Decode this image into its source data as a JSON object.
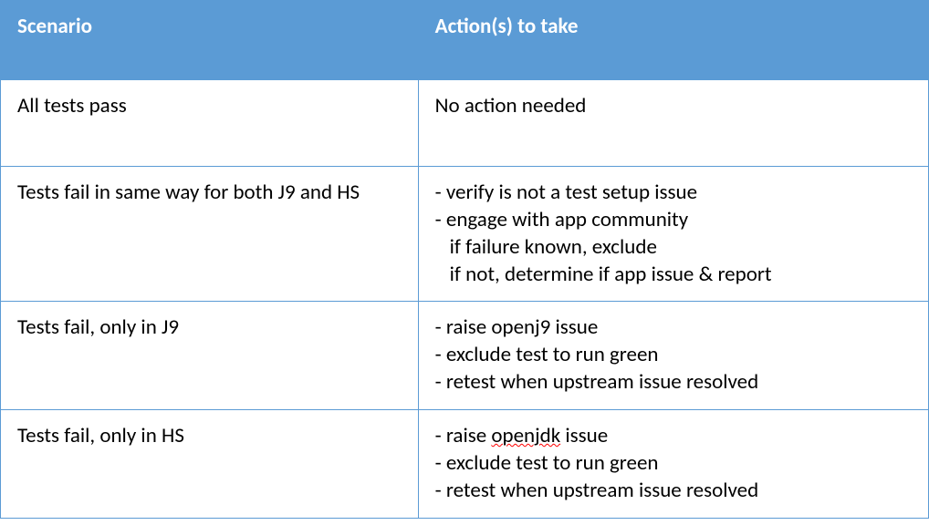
{
  "table": {
    "header_bg": "#5b9bd5",
    "header_fg": "#ffffff",
    "border_color": "#5b9bd5",
    "cell_bg": "#ffffff",
    "cell_fg": "#000000",
    "font_family": "Calibri, Arial, sans-serif",
    "header_fontsize": 23,
    "cell_fontsize": 23,
    "columns": [
      {
        "key": "scenario",
        "label": "Scenario",
        "width_pct": 45
      },
      {
        "key": "action",
        "label": "Action(s) to take",
        "width_pct": 55
      }
    ],
    "rows": [
      {
        "scenario": "All tests pass",
        "action_lines": [
          {
            "text": "No action needed",
            "indent": false
          }
        ],
        "tall": true
      },
      {
        "scenario": "Tests fail in same way for both J9 and HS",
        "action_lines": [
          {
            "text": "- verify is not a test setup issue",
            "indent": false
          },
          {
            "text": "- engage with app community",
            "indent": false
          },
          {
            "text": "if failure known, exclude",
            "indent": true
          },
          {
            "text": "if not, determine if app issue & report",
            "indent": true
          }
        ],
        "tall": false
      },
      {
        "scenario": "Tests fail, only in J9",
        "action_lines": [
          {
            "text": "- raise openj9 issue",
            "indent": false
          },
          {
            "text": "- exclude test to run green",
            "indent": false
          },
          {
            "text": "- retest when upstream issue resolved",
            "indent": false
          }
        ],
        "tall": false
      },
      {
        "scenario": "Tests fail, only in HS",
        "action_lines": [
          {
            "text_parts": [
              {
                "t": "- raise ",
                "err": false
              },
              {
                "t": "openjdk",
                "err": true
              },
              {
                "t": " issue",
                "err": false
              }
            ],
            "indent": false
          },
          {
            "text": "- exclude test to run green",
            "indent": false
          },
          {
            "text": "- retest when upstream issue resolved",
            "indent": false
          }
        ],
        "tall": false
      }
    ]
  }
}
